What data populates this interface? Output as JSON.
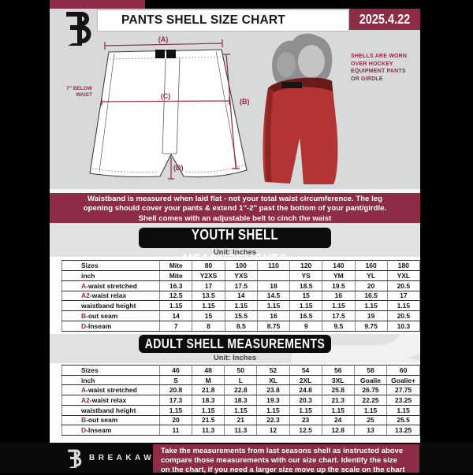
{
  "colors": {
    "maroon": "#8e2b46",
    "shellRed": "#b23434",
    "pageGrayTop": "#d8d9db",
    "pageGrayLow": "#e1e2e4",
    "ink": "#141414"
  },
  "header": {
    "title": "PANTS SHELL SIZE CHART",
    "date": "2025.4.22"
  },
  "diagram": {
    "label_a": "(A)",
    "label_b": "(B)",
    "label_c": "(C)",
    "label_d": "(D)",
    "waist_note": "7'' BELOW\nWAIST",
    "shell_note": "SHELLS ARE WORN\nOVER HOCKEY\nEQUIPMENT PANTS\nOR GIRDLE"
  },
  "banner": {
    "text": "Waistband is measured when laid flat - not your total waist circumference. The leg\nopening should cover your pants & extend 1''-2'' past the bottom of your pant/girdle.\nShell comes with an adjustable belt to cinch the waist"
  },
  "youth": {
    "heading": "YOUTH SHELL MEASUREMENTS",
    "unit": "Unit: Inches",
    "table": {
      "rows": [
        {
          "label": "Sizes",
          "cells": [
            "Mite",
            "80",
            "100",
            "110",
            "120",
            "140",
            "160",
            "180"
          ]
        },
        {
          "label": "inch",
          "cells": [
            "Mite",
            "Y2XS",
            "YXS",
            "",
            "YS",
            "YM",
            "YL",
            "YXL"
          ]
        },
        {
          "prefix": "A",
          "label": "-waist stretched",
          "cells": [
            "16.3",
            "17",
            "17.5",
            "18",
            "18.5",
            "19.5",
            "20",
            "20.5"
          ]
        },
        {
          "prefix": "A2",
          "label": "-waist relax",
          "cells": [
            "12.5",
            "13.5",
            "14",
            "14.5",
            "15",
            "16",
            "16.5",
            "17"
          ]
        },
        {
          "label": "waistband height",
          "cells": [
            "1.15",
            "1.15",
            "1.15",
            "1.15",
            "1.15",
            "1.15",
            "1.15",
            "1.15"
          ]
        },
        {
          "prefix": "B",
          "label": "-out seam",
          "cells": [
            "14",
            "15",
            "15.5",
            "16",
            "16.5",
            "17.5",
            "19",
            "20.5"
          ]
        },
        {
          "prefix": "D",
          "label": "-Inseam",
          "cells": [
            "7",
            "8",
            "8.5",
            "8.75",
            "9",
            "9.5",
            "9.75",
            "10.3"
          ]
        }
      ]
    }
  },
  "adult": {
    "heading": "ADULT SHELL MEASUREMENTS",
    "unit": "Unit: Inches",
    "table": {
      "rows": [
        {
          "label": "Sizes",
          "cells": [
            "46",
            "48",
            "50",
            "52",
            "54",
            "56",
            "58",
            "60"
          ]
        },
        {
          "label": "inch",
          "cells": [
            "S",
            "M",
            "L",
            "XL",
            "2XL",
            "3XL",
            "Goalie",
            "Goalie+"
          ]
        },
        {
          "prefix": "A",
          "label": "-waist stretched",
          "cells": [
            "20.8",
            "21.8",
            "22.8",
            "23.8",
            "24.8",
            "25.8",
            "26.75",
            "27.75"
          ]
        },
        {
          "prefix": "A2",
          "label": "-waist relax",
          "cells": [
            "17.3",
            "18.3",
            "18.3",
            "19.3",
            "20.3",
            "21.3",
            "22.25",
            "23.25"
          ]
        },
        {
          "label": "waistband height",
          "cells": [
            "1.15",
            "1.15",
            "1.15",
            "1.15",
            "1.15",
            "1.15",
            "1.15",
            "1.15"
          ]
        },
        {
          "prefix": "B",
          "label": "-out seam",
          "cells": [
            "20",
            "21.5",
            "21",
            "22.3",
            "23",
            "24",
            "25",
            "25.5"
          ]
        },
        {
          "prefix": "D",
          "label": "-Inseam",
          "cells": [
            "11",
            "11.3",
            "11.3",
            "12",
            "12.5",
            "12.8",
            "13",
            "13.25"
          ]
        }
      ]
    }
  },
  "footer": {
    "brand": "BREAKAWAY",
    "note": "Take the measurements from last seasons shell as instructed above\ncompare those measurements with our size chart. Identify the size\non the chart, if you need a larger size move up the scale on the chart",
    "watermark": "B"
  }
}
